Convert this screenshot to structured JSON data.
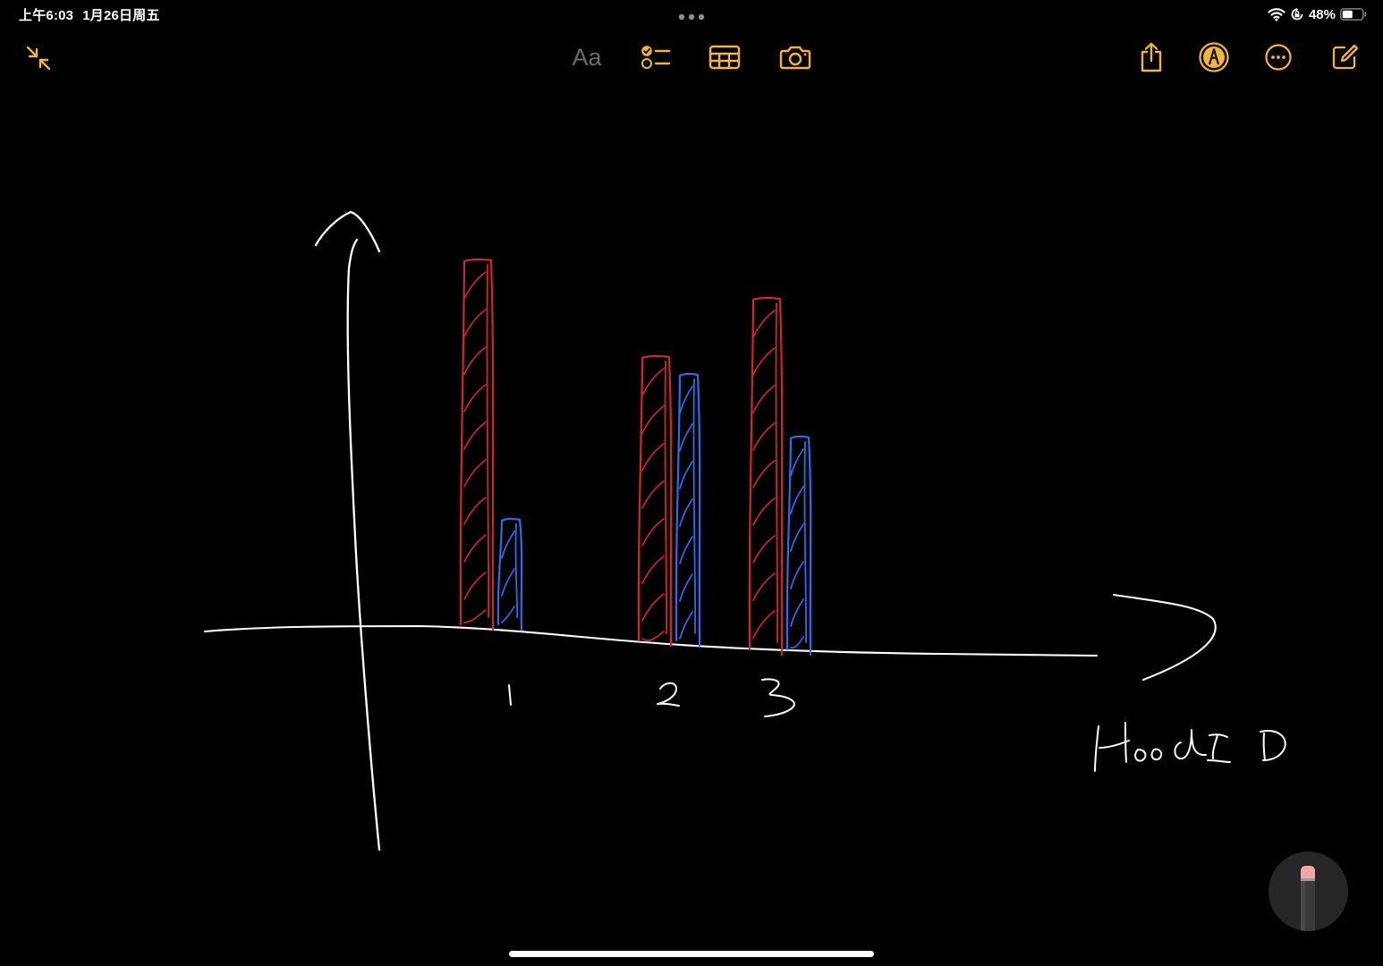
{
  "status_bar": {
    "time": "上午6:03",
    "date": "1月26日周五",
    "battery": "48%",
    "icons": [
      "wifi-icon",
      "orientation-lock-icon",
      "battery-icon"
    ]
  },
  "toolbar": {
    "format_label": "Aa",
    "buttons": [
      "minimize-icon",
      "checklist-icon",
      "table-icon",
      "camera-icon",
      "share-icon",
      "markup-icon",
      "more-icon",
      "compose-icon"
    ]
  },
  "colors": {
    "accent": "#f2b43a",
    "ink_red": "#cc2a2a",
    "ink_blue": "#2f6ce8",
    "ink_white": "#ffffff",
    "background": "#000000"
  },
  "note": {
    "handwritten_labels": [
      "1",
      "2",
      "3",
      "Hood ID"
    ]
  },
  "chart_data": {
    "type": "bar",
    "categories": [
      "1",
      "2",
      "3"
    ],
    "series": [
      {
        "color": "red",
        "values": [
          410,
          320,
          395
        ]
      },
      {
        "color": "blue",
        "values": [
          120,
          300,
          240
        ]
      }
    ],
    "xlabel": "Hood ID",
    "ylabel": "",
    "hatched": true,
    "hand_drawn": true
  }
}
